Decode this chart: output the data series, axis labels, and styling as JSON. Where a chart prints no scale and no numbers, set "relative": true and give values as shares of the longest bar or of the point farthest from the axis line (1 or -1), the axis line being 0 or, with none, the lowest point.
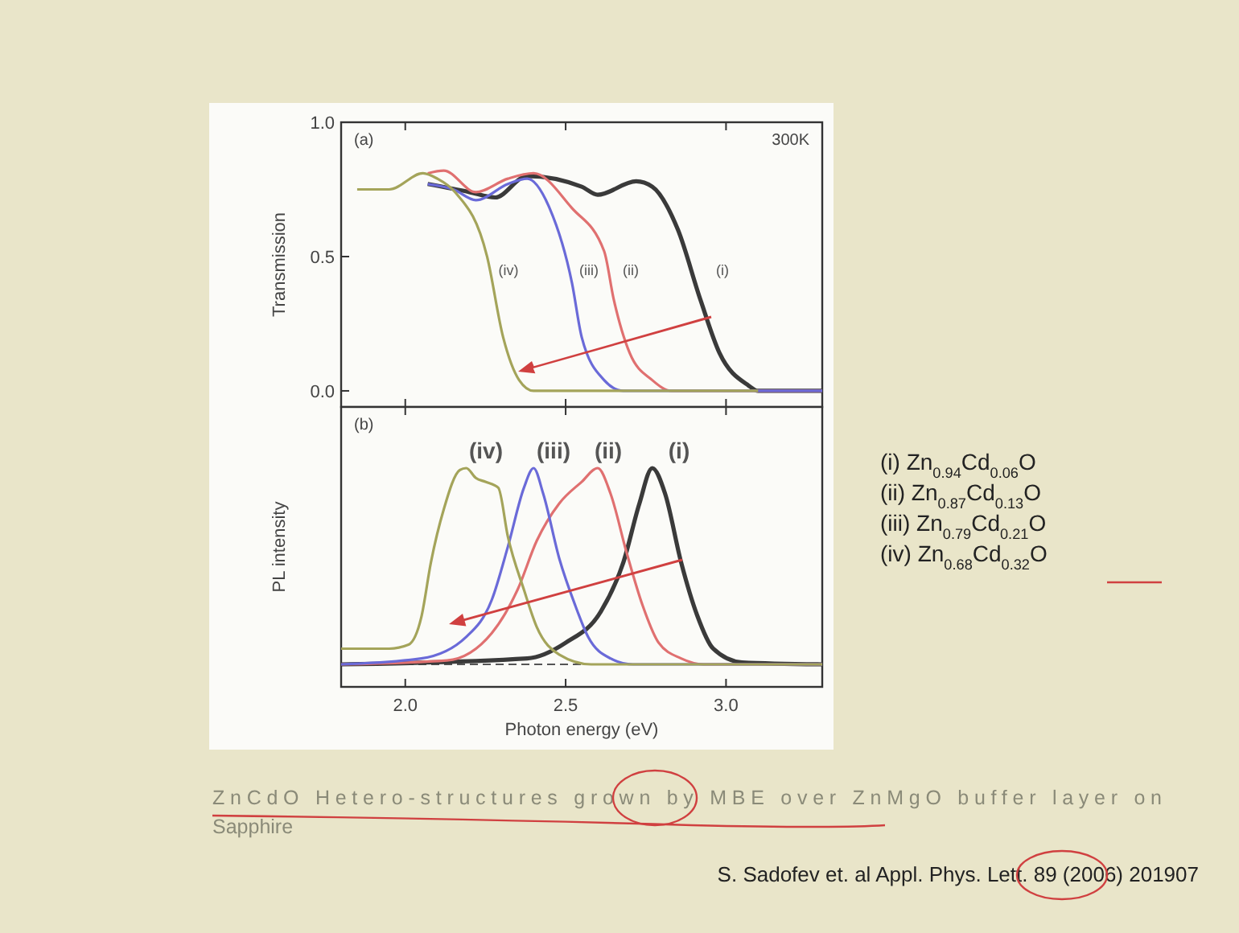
{
  "chart_data": [
    {
      "type": "line",
      "ylabel": "Transmission",
      "xlim": [
        1.8,
        3.3
      ],
      "xticks": [
        {
          "value": 2.0,
          "label": null
        },
        {
          "value": 2.5,
          "label": null
        },
        {
          "value": 3.0,
          "label": null
        }
      ],
      "ylim": [
        -0.06,
        1.0
      ],
      "yticks": [
        {
          "value": 0,
          "label": "0.0"
        },
        {
          "value": 0.5,
          "label": "0.5"
        },
        {
          "value": 1,
          "label": "1.0"
        }
      ],
      "tick_labels": "y",
      "series": [
        {
          "color": "#3a3a3a",
          "x": [
            2.07,
            2.2,
            2.28,
            2.38,
            2.55,
            2.6,
            2.72,
            2.77,
            2.85,
            2.92,
            2.98,
            3.07,
            3.1,
            3.3
          ],
          "values": [
            0.77,
            0.74,
            0.72,
            0.8,
            0.76,
            0.73,
            0.78,
            0.76,
            0.6,
            0.34,
            0.14,
            0.02,
            0,
            0
          ]
        },
        {
          "color": "#e07070",
          "x": [
            2.07,
            2.12,
            2.22,
            2.32,
            2.4,
            2.52,
            2.62,
            2.65,
            2.7,
            2.77,
            2.83,
            3.3
          ],
          "values": [
            0.81,
            0.82,
            0.74,
            0.79,
            0.81,
            0.68,
            0.52,
            0.34,
            0.14,
            0.04,
            0,
            0
          ]
        },
        {
          "color": "#6a6ad8",
          "x": [
            2.07,
            2.15,
            2.22,
            2.32,
            2.38,
            2.45,
            2.52,
            2.55,
            2.62,
            2.68,
            3.3
          ],
          "values": [
            0.77,
            0.75,
            0.71,
            0.77,
            0.79,
            0.68,
            0.4,
            0.2,
            0.04,
            0,
            0
          ]
        },
        {
          "color": "#a4a45a",
          "x": [
            1.85,
            1.95,
            2.055,
            2.1,
            2.155,
            2.255,
            2.305,
            2.355,
            2.4,
            3.1
          ],
          "values": [
            0.75,
            0.75,
            0.81,
            0.79,
            0.74,
            0.5,
            0.2,
            0.04,
            0,
            0
          ]
        }
      ],
      "annotations": [
        "(a)",
        "300K",
        "(iv)",
        "(iii)",
        "(ii)",
        "(i)"
      ]
    },
    {
      "type": "line",
      "relative": true,
      "ylabel": "PL intensity",
      "xlabel": "Photon energy (eV)",
      "xlim": [
        1.8,
        3.3
      ],
      "xticks": [
        {
          "value": 2.0,
          "label": "2.0"
        },
        {
          "value": 2.5,
          "label": "2.5"
        },
        {
          "value": 3.0,
          "label": "3.0"
        }
      ],
      "tick_labels": "x",
      "ref_lines": [
        {
          "axis": "y",
          "value": 0,
          "line_style": "dashed",
          "color": "#555555"
        }
      ],
      "series": [
        {
          "color": "#3a3a3a",
          "x": [
            1.8,
            2.38,
            2.5,
            2.61,
            2.68,
            2.73,
            2.77,
            2.81,
            2.86,
            2.91,
            2.96,
            3.05,
            3.3
          ],
          "values": [
            0,
            0.03,
            0.11,
            0.27,
            0.52,
            0.82,
            1.0,
            0.87,
            0.52,
            0.25,
            0.08,
            0.01,
            0
          ]
        },
        {
          "color": "#e07070",
          "x": [
            1.8,
            2.13,
            2.27,
            2.35,
            2.41,
            2.48,
            2.55,
            2.6,
            2.64,
            2.69,
            2.74,
            2.79,
            2.86,
            2.93,
            3.3
          ],
          "values": [
            0,
            0.02,
            0.16,
            0.38,
            0.63,
            0.82,
            0.93,
            1.0,
            0.87,
            0.57,
            0.3,
            0.11,
            0.03,
            0,
            0
          ]
        },
        {
          "color": "#6a6ad8",
          "x": [
            1.8,
            2.05,
            2.19,
            2.27,
            2.32,
            2.37,
            2.4,
            2.43,
            2.48,
            2.53,
            2.57,
            2.64,
            2.71,
            3.3
          ],
          "values": [
            0,
            0.03,
            0.14,
            0.33,
            0.6,
            0.9,
            1.0,
            0.87,
            0.54,
            0.3,
            0.14,
            0.03,
            0,
            0
          ]
        },
        {
          "color": "#a4a45a",
          "x": [
            1.8,
            1.95,
            2.01,
            2.05,
            2.08,
            2.12,
            2.17,
            2.19,
            2.22,
            2.25,
            2.29,
            2.32,
            2.37,
            2.41,
            2.48,
            2.58,
            3.3
          ],
          "values": [
            0.08,
            0.08,
            0.1,
            0.24,
            0.52,
            0.79,
            0.99,
            1.0,
            0.95,
            0.93,
            0.9,
            0.65,
            0.38,
            0.19,
            0.05,
            0,
            0
          ]
        }
      ],
      "annotations": [
        "(b)",
        "(i) Zn$_{0.94}$Cd$_{0.06}$O",
        "(ii) Zn$_{0.87}$Cd$_{0.13}$O",
        "(iii) Zn$_{0.79}$Cd$_{0.21}$O",
        "(iv) Zn$_{0.68}$Cd$_{0.32}$O",
        "ZnCdO Hetero-structures grown by MBE over ZnMgO buffer layer on Sapphire",
        "S. Sadofev et. al Appl. Phys. Lett. 89 (2006) 201907",
        "(iv)",
        "(iii)",
        "(ii)",
        "(i)"
      ]
    }
  ]
}
